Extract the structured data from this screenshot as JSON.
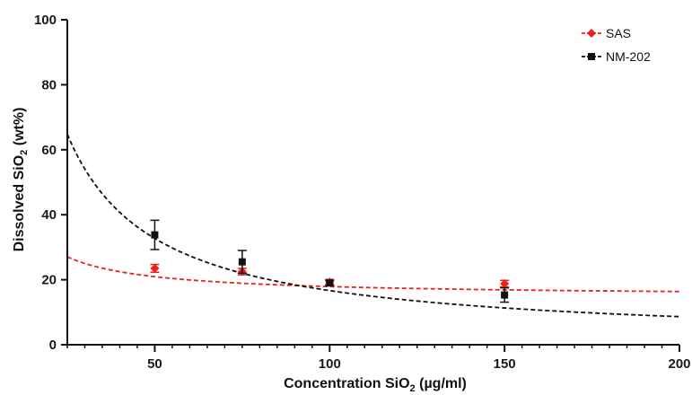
{
  "chart_data": {
    "type": "scatter",
    "x_label": {
      "main": "Concentration SiO",
      "sub": "2",
      "rest": " (µg/ml)"
    },
    "y_label": {
      "main": "Dissolved SiO",
      "sub": "2",
      "rest": " (wt%)"
    },
    "xlim": [
      25,
      200
    ],
    "ylim": [
      0,
      100
    ],
    "x_ticks": [
      50,
      100,
      150,
      200
    ],
    "x_minor_step": 5,
    "y_ticks": [
      0,
      20,
      40,
      60,
      80,
      100
    ],
    "grid": false,
    "legend_position": "top-right",
    "series": [
      {
        "name": "SAS",
        "color": "#e8231f",
        "marker": "diamond",
        "line_style": "dashed",
        "points": [
          {
            "x": 50,
            "y": 23.5,
            "err": 1.2
          },
          {
            "x": 75,
            "y": 22.5,
            "err": 1.0
          },
          {
            "x": 100,
            "y": 19.3,
            "err": 0.8
          },
          {
            "x": 150,
            "y": 18.8,
            "err": 1.0
          }
        ],
        "fit": {
          "a": 14.85,
          "b": 305
        }
      },
      {
        "name": "NM-202",
        "color": "#111111",
        "marker": "square",
        "line_style": "dashed",
        "points": [
          {
            "x": 50,
            "y": 33.8,
            "err": 4.5
          },
          {
            "x": 75,
            "y": 25.5,
            "err": 3.5
          },
          {
            "x": 100,
            "y": 19.0,
            "err": 0.8
          },
          {
            "x": 150,
            "y": 15.3,
            "err": 2.2
          }
        ],
        "fit": {
          "a": 0.62,
          "b": 1604
        }
      }
    ]
  }
}
